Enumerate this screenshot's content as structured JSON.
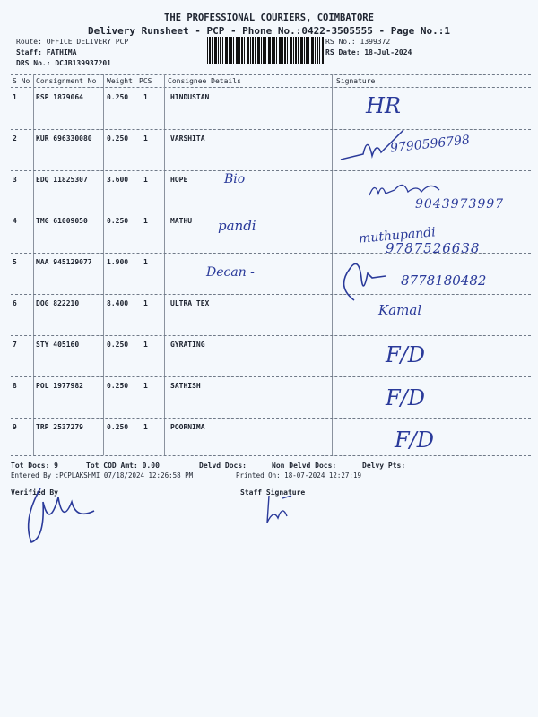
{
  "header": {
    "company": "THE PROFESSIONAL COURIERS, COIMBATORE",
    "subtitle": "Delivery Runsheet - PCP - Phone No.:0422-3505555 - Page No.:1",
    "route": "Route: OFFICE DELIVERY PCP",
    "staff": "Staff: FATHIMA",
    "drs_no": "DRS No.: DCJB139937201",
    "rs_no": "RS No.: 1399372",
    "rs_date": "RS Date: 18-Jul-2024"
  },
  "table": {
    "columns": [
      "S No",
      "Consignment No",
      "Weight",
      "PCS",
      "Consignee Details",
      "Signature"
    ],
    "rows": [
      {
        "sno": "1",
        "consignment": "RSP 1879064",
        "weight": "0.250",
        "pcs": "1",
        "consignee": "HINDUSTAN"
      },
      {
        "sno": "2",
        "consignment": "KUR 696330080",
        "weight": "0.250",
        "pcs": "1",
        "consignee": "VARSHITA"
      },
      {
        "sno": "3",
        "consignment": "EDQ 11825307",
        "weight": "3.600",
        "pcs": "1",
        "consignee": "HOPE"
      },
      {
        "sno": "4",
        "consignment": "TMG 61009050",
        "weight": "0.250",
        "pcs": "1",
        "consignee": "MATHU"
      },
      {
        "sno": "5",
        "consignment": "MAA 945129077",
        "weight": "1.900",
        "pcs": "1",
        "consignee": ""
      },
      {
        "sno": "6",
        "consignment": "DOG 822210",
        "weight": "8.400",
        "pcs": "1",
        "consignee": "ULTRA TEX"
      },
      {
        "sno": "7",
        "consignment": "STY 405160",
        "weight": "0.250",
        "pcs": "1",
        "consignee": "GYRATING"
      },
      {
        "sno": "8",
        "consignment": "POL 1977982",
        "weight": "0.250",
        "pcs": "1",
        "consignee": "SATHISH"
      },
      {
        "sno": "9",
        "consignment": "TRP 2537279",
        "weight": "0.250",
        "pcs": "1",
        "consignee": "POORNIMA"
      }
    ]
  },
  "handwritten": {
    "r1_sign": "HR",
    "r2_phone": "9790596798",
    "r3_note": "Bio",
    "r3_phone": "9043973997",
    "r4_note": "pandi",
    "r4_name": "muthupandi",
    "r4_phone": "9787526638",
    "r5_note": "Decan -",
    "r6_phone": "8778180482",
    "r6_name": "Kamal",
    "r7_sign": "F/D",
    "r8_sign": "F/D",
    "r9_sign": "F/D"
  },
  "footer": {
    "tot_docs": "Tot Docs:   9",
    "tot_cod": "Tot COD Amt:    0.00",
    "delvd_docs": "Delvd Docs:",
    "non_delvd_docs": "Non Delvd Docs:",
    "delvy_pts": "Delvy Pts:",
    "entered_by": "Entered By :PCPLAKSHMI 07/18/2024 12:26:58 PM",
    "printed_on": "Printed On: 18-07-2024 12:27:19",
    "verified_by": "Verified By",
    "staff_signature": "Staff Signature"
  },
  "colors": {
    "ink": "#2a3a9a",
    "paper": "#f4f8fc"
  }
}
